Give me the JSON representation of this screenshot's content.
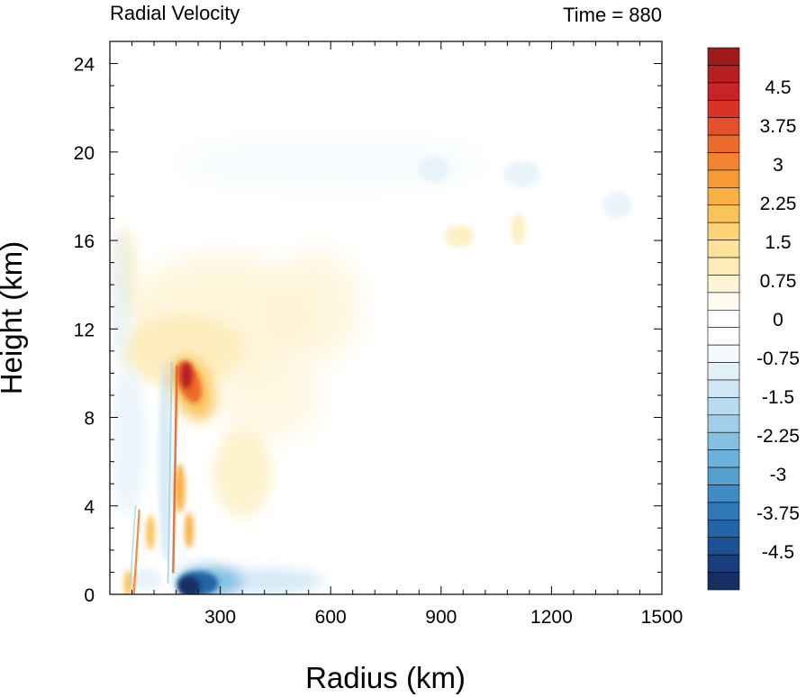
{
  "chart_data": {
    "type": "heatmap",
    "title_left": "Radial Velocity",
    "title_right": "Time = 880",
    "xlabel": "Radius (km)",
    "ylabel": "Height (km)",
    "xlim": [
      0,
      1500
    ],
    "ylim": [
      0,
      25
    ],
    "xticks": [
      300,
      600,
      900,
      1200,
      1500
    ],
    "yticks": [
      0,
      4,
      8,
      12,
      16,
      20,
      24
    ],
    "colorbar": {
      "min": -5.25,
      "max": 5.25,
      "step": 0.25,
      "labels": [
        "4.5",
        "3.75",
        "3",
        "2.25",
        "1.5",
        "0.75",
        "0",
        "-0.75",
        "-1.5",
        "-2.25",
        "-3",
        "-3.75",
        "-4.5"
      ],
      "label_values": [
        4.5,
        3.75,
        3,
        2.25,
        1.5,
        0.75,
        0,
        -0.75,
        -1.5,
        -2.25,
        -3,
        -3.75,
        -4.5
      ],
      "colors_top_to_bottom": [
        "#9e1a1d",
        "#b51f22",
        "#c92227",
        "#d93328",
        "#e4502a",
        "#ec6a2c",
        "#f3842f",
        "#f69b37",
        "#f9b042",
        "#fbc45b",
        "#fdd579",
        "#fde39a",
        "#fdecb9",
        "#fef4d6",
        "#fffaf0",
        "#ffffff",
        "#ffffff",
        "#f5fafd",
        "#e3f1f9",
        "#cfe7f4",
        "#b8dcef",
        "#9fcfe9",
        "#86c1e2",
        "#6cb1d9",
        "#559fcf",
        "#3f8cc3",
        "#2f78b6",
        "#2465a7",
        "#1d5194",
        "#193e7c",
        "#162e63"
      ]
    },
    "features": [
      {
        "desc": "strong inflow near surface",
        "radius_km": [
          170,
          330
        ],
        "height_km": [
          0,
          1
        ],
        "value": -5
      },
      {
        "desc": "weak inflow near surface",
        "radius_km": [
          330,
          550
        ],
        "height_km": [
          0.1,
          1
        ],
        "value": -1.5
      },
      {
        "desc": "outflow maximum",
        "radius_km": [
          190,
          240
        ],
        "height_km": [
          8.5,
          10.5
        ],
        "value": 4.5
      },
      {
        "desc": "eyewall outflow streak",
        "radius_km": [
          175,
          180
        ],
        "height_km": [
          1,
          10
        ],
        "value": 3.5
      },
      {
        "desc": "inner outflow streak",
        "radius_km": [
          65,
          80
        ],
        "height_km": [
          0,
          4
        ],
        "value": 3
      },
      {
        "desc": "upper-level outflow",
        "radius_km": [
          0,
          700
        ],
        "height_km": [
          9,
          16
        ],
        "value": 1
      },
      {
        "desc": "upper-level inflow",
        "radius_km": [
          0,
          1500
        ],
        "height_km": [
          17,
          21
        ],
        "value": -0.8
      }
    ]
  }
}
